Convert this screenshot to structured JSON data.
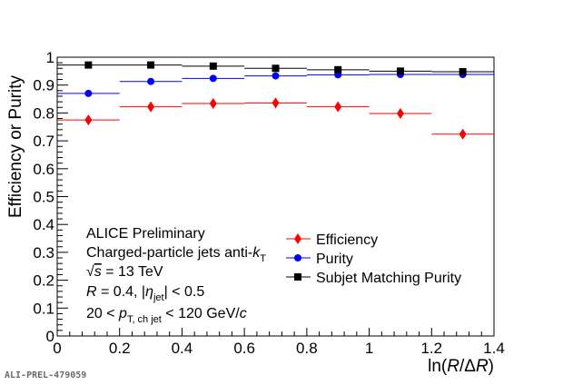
{
  "chart_data": {
    "type": "scatter",
    "xlabel": "ln(R/ΔR)",
    "ylabel": "Efficiency or Purity",
    "xlim": [
      0,
      1.4
    ],
    "ylim": [
      0,
      1
    ],
    "x_ticks": [
      "0",
      "0.2",
      "0.4",
      "0.6",
      "0.8",
      "1",
      "1.2",
      "1.4"
    ],
    "y_ticks": [
      "0",
      "0.1",
      "0.2",
      "0.3",
      "0.4",
      "0.5",
      "0.6",
      "0.7",
      "0.8",
      "0.9",
      "1"
    ],
    "grid": false,
    "legend_position": "center-right",
    "series": [
      {
        "name": "Efficiency",
        "color": "#ff0000",
        "marker": "diamond",
        "points": [
          {
            "x": 0.1,
            "xlo": 0.0,
            "xhi": 0.2,
            "y": 0.775
          },
          {
            "x": 0.3,
            "xlo": 0.2,
            "xhi": 0.4,
            "y": 0.822
          },
          {
            "x": 0.5,
            "xlo": 0.4,
            "xhi": 0.6,
            "y": 0.834
          },
          {
            "x": 0.7,
            "xlo": 0.6,
            "xhi": 0.8,
            "y": 0.836
          },
          {
            "x": 0.9,
            "xlo": 0.8,
            "xhi": 1.0,
            "y": 0.822
          },
          {
            "x": 1.1,
            "xlo": 1.0,
            "xhi": 1.2,
            "y": 0.798
          },
          {
            "x": 1.3,
            "xlo": 1.2,
            "xhi": 1.4,
            "y": 0.724
          }
        ]
      },
      {
        "name": "Purity",
        "color": "#0000ff",
        "marker": "circle",
        "points": [
          {
            "x": 0.1,
            "xlo": 0.0,
            "xhi": 0.2,
            "y": 0.87
          },
          {
            "x": 0.3,
            "xlo": 0.2,
            "xhi": 0.4,
            "y": 0.913
          },
          {
            "x": 0.5,
            "xlo": 0.4,
            "xhi": 0.6,
            "y": 0.924
          },
          {
            "x": 0.7,
            "xlo": 0.6,
            "xhi": 0.8,
            "y": 0.933
          },
          {
            "x": 0.9,
            "xlo": 0.8,
            "xhi": 1.0,
            "y": 0.937
          },
          {
            "x": 1.1,
            "xlo": 1.0,
            "xhi": 1.2,
            "y": 0.938
          },
          {
            "x": 1.3,
            "xlo": 1.2,
            "xhi": 1.4,
            "y": 0.938
          }
        ]
      },
      {
        "name": "Subjet Matching Purity",
        "color": "#000000",
        "marker": "square",
        "points": [
          {
            "x": 0.1,
            "xlo": 0.0,
            "xhi": 0.2,
            "y": 0.972
          },
          {
            "x": 0.3,
            "xlo": 0.2,
            "xhi": 0.4,
            "y": 0.972
          },
          {
            "x": 0.5,
            "xlo": 0.4,
            "xhi": 0.6,
            "y": 0.968
          },
          {
            "x": 0.7,
            "xlo": 0.6,
            "xhi": 0.8,
            "y": 0.96
          },
          {
            "x": 0.9,
            "xlo": 0.8,
            "xhi": 1.0,
            "y": 0.955
          },
          {
            "x": 1.1,
            "xlo": 1.0,
            "xhi": 1.2,
            "y": 0.95
          },
          {
            "x": 1.3,
            "xlo": 1.2,
            "xhi": 1.4,
            "y": 0.948
          }
        ]
      }
    ],
    "annotations": [
      "ALICE Preliminary",
      "Charged-particle jets anti-kT",
      "√s = 13 TeV",
      "R = 0.4, |ηjet| < 0.5",
      "20 < pT, ch jet < 120 GeV/c"
    ]
  },
  "footer_label": "ALI-PREL-479059"
}
